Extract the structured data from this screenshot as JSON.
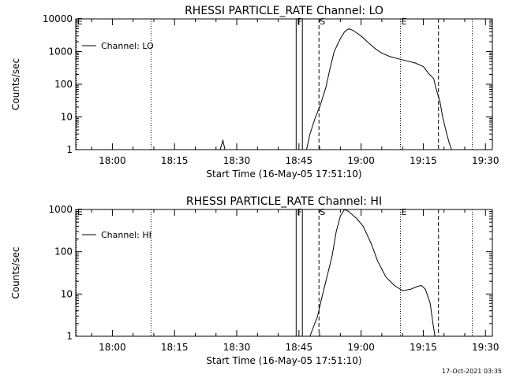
{
  "chart_data": [
    {
      "type": "line",
      "title": "RHESSI PARTICLE_RATE Channel: LO",
      "xlabel": "Start Time (16-May-05 17:51:10)",
      "ylabel": "Counts/sec",
      "xlim": [
        "17:51:10",
        "19:31:40"
      ],
      "ylim": [
        1,
        10000
      ],
      "yscale": "log",
      "x_ticks": [
        "18:00",
        "18:15",
        "18:30",
        "18:45",
        "19:00",
        "19:15",
        "19:30"
      ],
      "y_ticks": [
        "1",
        "10",
        "100",
        "1000",
        "10000"
      ],
      "legend": {
        "position": "top-left",
        "entries": [
          "Channel: LO"
        ]
      },
      "vlines": [
        {
          "time": "17:51:20",
          "style": "dotted",
          "label": "E"
        },
        {
          "time": "18:09:20",
          "style": "dotted",
          "label": ""
        },
        {
          "time": "18:44:20",
          "style": "solid",
          "label": "F"
        },
        {
          "time": "18:45:50",
          "style": "solid",
          "label": ""
        },
        {
          "time": "18:49:50",
          "style": "dashed",
          "label": "S"
        },
        {
          "time": "19:09:30",
          "style": "dotted",
          "label": "E"
        },
        {
          "time": "19:18:40",
          "style": "dashed",
          "label": ""
        },
        {
          "time": "19:26:50",
          "style": "dotted",
          "label": ""
        }
      ],
      "series": [
        {
          "name": "Channel: LO",
          "points": [
            [
              "18:26:00",
              1
            ],
            [
              "18:26:40",
              1.9
            ],
            [
              "18:27:10",
              1
            ],
            [
              "18:46:50",
              1
            ],
            [
              "18:47:40",
              3
            ],
            [
              "18:49:00",
              10
            ],
            [
              "18:50:00",
              20
            ],
            [
              "18:51:30",
              80
            ],
            [
              "18:52:30",
              300
            ],
            [
              "18:53:30",
              1000
            ],
            [
              "18:55:00",
              2500
            ],
            [
              "18:56:00",
              4000
            ],
            [
              "18:57:00",
              5000
            ],
            [
              "18:58:00",
              4500
            ],
            [
              "19:00:00",
              3000
            ],
            [
              "19:01:30",
              2000
            ],
            [
              "19:03:30",
              1200
            ],
            [
              "19:05:00",
              900
            ],
            [
              "19:07:00",
              700
            ],
            [
              "19:09:00",
              600
            ],
            [
              "19:11:00",
              520
            ],
            [
              "19:13:00",
              450
            ],
            [
              "19:15:00",
              350
            ],
            [
              "19:16:30",
              200
            ],
            [
              "19:17:30",
              150
            ],
            [
              "19:18:00",
              80
            ],
            [
              "19:19:00",
              30
            ],
            [
              "19:19:40",
              10
            ],
            [
              "19:20:40",
              3
            ],
            [
              "19:21:20",
              1.5
            ],
            [
              "19:21:50",
              1
            ]
          ]
        }
      ]
    },
    {
      "type": "line",
      "title": "RHESSI PARTICLE_RATE Channel: HI",
      "xlabel": "Start Time (16-May-05 17:51:10)",
      "ylabel": "Counts/sec",
      "xlim": [
        "17:51:10",
        "19:31:40"
      ],
      "ylim": [
        1,
        1000
      ],
      "yscale": "log",
      "x_ticks": [
        "18:00",
        "18:15",
        "18:30",
        "18:45",
        "19:00",
        "19:15",
        "19:30"
      ],
      "y_ticks": [
        "1",
        "10",
        "100",
        "1000"
      ],
      "legend": {
        "position": "top-left",
        "entries": [
          "Channel: HI"
        ]
      },
      "vlines": [
        {
          "time": "17:51:20",
          "style": "dotted",
          "label": "E"
        },
        {
          "time": "18:09:20",
          "style": "dotted",
          "label": ""
        },
        {
          "time": "18:44:20",
          "style": "solid",
          "label": "F"
        },
        {
          "time": "18:45:50",
          "style": "solid",
          "label": ""
        },
        {
          "time": "18:49:50",
          "style": "dashed",
          "label": "S"
        },
        {
          "time": "19:09:30",
          "style": "dotted",
          "label": "E"
        },
        {
          "time": "19:18:40",
          "style": "dashed",
          "label": ""
        },
        {
          "time": "19:26:50",
          "style": "dotted",
          "label": ""
        }
      ],
      "series": [
        {
          "name": "Channel: HI",
          "points": [
            [
              "18:47:40",
              1
            ],
            [
              "18:49:30",
              3
            ],
            [
              "18:50:30",
              8
            ],
            [
              "18:51:30",
              20
            ],
            [
              "18:53:00",
              80
            ],
            [
              "18:54:00",
              300
            ],
            [
              "18:55:00",
              700
            ],
            [
              "18:56:00",
              1000
            ],
            [
              "18:57:00",
              900
            ],
            [
              "18:59:00",
              600
            ],
            [
              "19:00:30",
              400
            ],
            [
              "19:02:30",
              150
            ],
            [
              "19:04:00",
              60
            ],
            [
              "19:06:00",
              25
            ],
            [
              "19:08:00",
              16
            ],
            [
              "19:10:00",
              12
            ],
            [
              "19:12:00",
              13
            ],
            [
              "19:13:30",
              15
            ],
            [
              "19:14:30",
              16
            ],
            [
              "19:15:30",
              13
            ],
            [
              "19:16:40",
              6
            ],
            [
              "19:17:20",
              2
            ],
            [
              "19:17:50",
              1
            ]
          ]
        }
      ]
    }
  ],
  "footer_timestamp": "17-Oct-2021 03:35"
}
